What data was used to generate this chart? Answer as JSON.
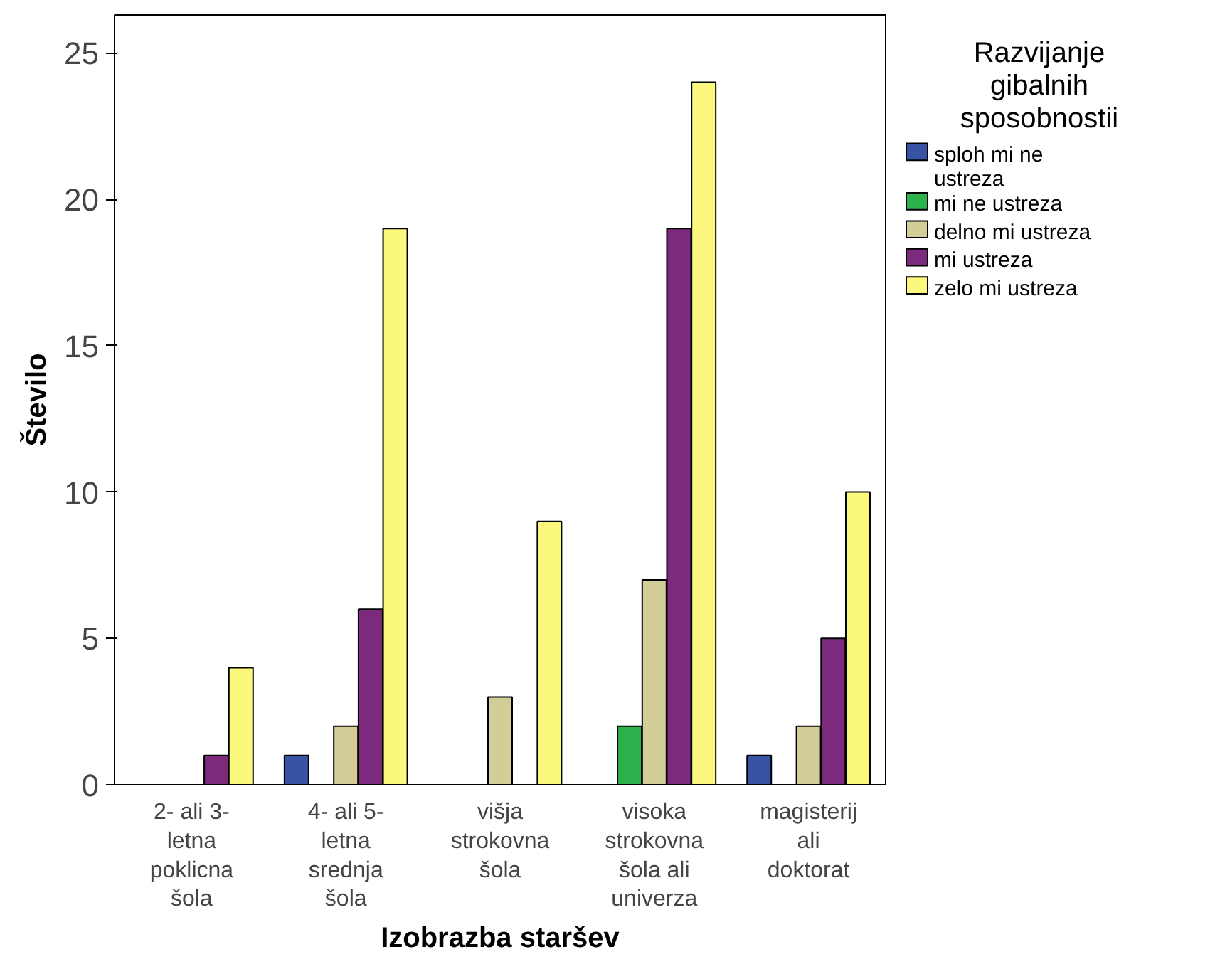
{
  "chart_data": {
    "type": "bar",
    "xlabel": "Izobrazba staršev",
    "ylabel": "Število",
    "legend_title": "Razvijanje gibalnih sposobnostii",
    "categories": [
      "2- ali 3-\nletna\npoklicna\nšola",
      "4- ali 5-\nletna\nsrednja\nšola",
      "višja\nstrokovna\nšola",
      "visoka\nstrokovna\nšola ali\nuniverza",
      "magisterij\nali\ndoktorat"
    ],
    "series": [
      {
        "name": "sploh mi ne ustreza",
        "color": "#3953a4",
        "values": [
          null,
          1,
          null,
          null,
          1
        ]
      },
      {
        "name": "mi ne ustreza",
        "color": "#2bb24c",
        "values": [
          null,
          null,
          null,
          2,
          null
        ]
      },
      {
        "name": "delno mi ustreza",
        "color": "#d3ce97",
        "values": [
          null,
          2,
          3,
          7,
          2
        ]
      },
      {
        "name": "mi ustreza",
        "color": "#7b2a7e",
        "values": [
          1,
          6,
          null,
          19,
          5
        ]
      },
      {
        "name": "zelo mi ustreza",
        "color": "#fbf87d",
        "values": [
          4,
          19,
          9,
          24,
          10
        ]
      }
    ],
    "ylim": [
      0,
      26.3
    ],
    "yticks": [
      0,
      5,
      10,
      15,
      20,
      25
    ],
    "grid": false,
    "legend": "right"
  }
}
